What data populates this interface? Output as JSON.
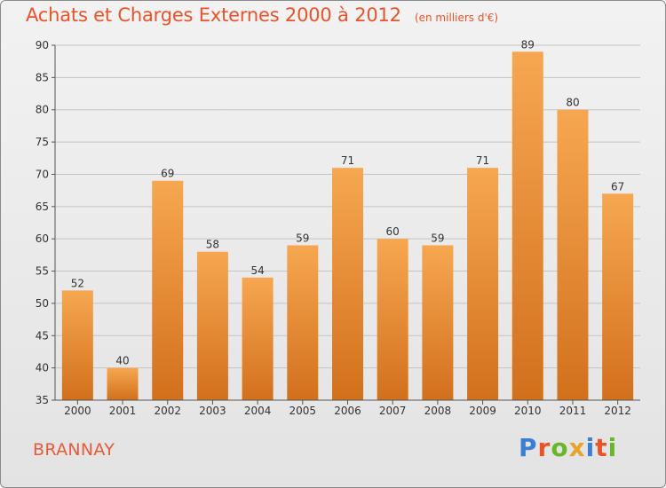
{
  "header": {
    "title": "Achats et Charges Externes 2000 à 2012",
    "unit": "(en milliers d'€)"
  },
  "footer": {
    "commune": "BRANNAY",
    "logo_text": "Proxiti",
    "logo_colors": [
      "#3a7fd5",
      "#e8532a",
      "#6bb52b",
      "#e8a42a",
      "#3a7fd5",
      "#e8532a",
      "#6bb52b"
    ]
  },
  "colors": {
    "bar_light": "#f7a751",
    "bar_dark": "#d2701c",
    "title": "#e8532a",
    "axis": "#555555",
    "grid": "#c4c4c4",
    "background": "#e6e6e6"
  },
  "chart_data": {
    "type": "bar",
    "title": "Achats et Charges Externes 2000 à 2012",
    "subtitle": "(en milliers d'€)",
    "xlabel": "",
    "ylabel": "",
    "categories": [
      "2000",
      "2001",
      "2002",
      "2003",
      "2004",
      "2005",
      "2006",
      "2007",
      "2008",
      "2009",
      "2010",
      "2011",
      "2012"
    ],
    "values": [
      52,
      40,
      69,
      58,
      54,
      59,
      71,
      60,
      59,
      71,
      89,
      80,
      67
    ],
    "ylim": [
      35,
      90
    ],
    "yticks": [
      35,
      40,
      45,
      50,
      55,
      60,
      65,
      70,
      75,
      80,
      85,
      90
    ],
    "grid": true,
    "data_labels": true
  }
}
